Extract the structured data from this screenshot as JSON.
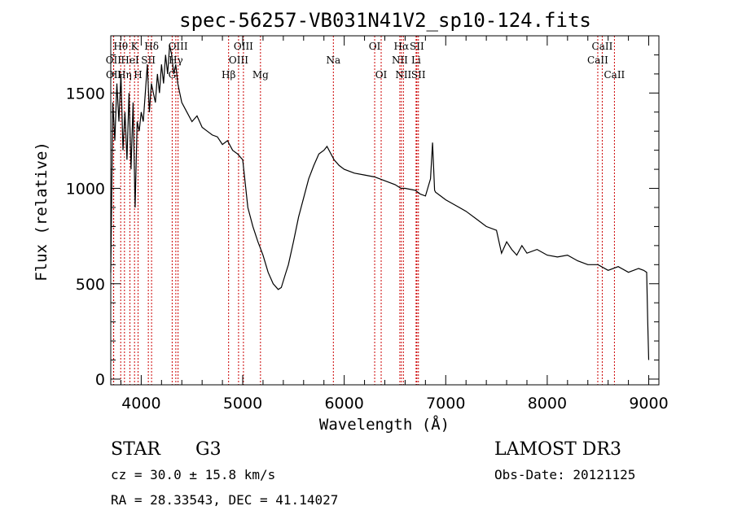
{
  "chart_data": {
    "type": "line",
    "title": "spec-56257-VB031N41V2_sp10-124.fits",
    "xlabel": "Wavelength (Å)",
    "ylabel": "Flux (relative)",
    "xlim": [
      3700,
      9100
    ],
    "ylim": [
      -30,
      1800
    ],
    "xticks": [
      4000,
      5000,
      6000,
      7000,
      8000,
      9000
    ],
    "yticks": [
      0,
      500,
      1000,
      1500
    ],
    "grid": false,
    "spectrum": {
      "x": [
        3700,
        3720,
        3740,
        3760,
        3780,
        3800,
        3820,
        3840,
        3860,
        3880,
        3900,
        3920,
        3940,
        3960,
        3980,
        4000,
        4020,
        4040,
        4060,
        4080,
        4100,
        4120,
        4140,
        4160,
        4180,
        4200,
        4220,
        4240,
        4260,
        4280,
        4300,
        4320,
        4340,
        4360,
        4380,
        4400,
        4450,
        4500,
        4550,
        4600,
        4650,
        4700,
        4750,
        4800,
        4850,
        4900,
        4950,
        5000,
        5050,
        5100,
        5150,
        5200,
        5250,
        5300,
        5350,
        5380,
        5420,
        5450,
        5500,
        5550,
        5600,
        5650,
        5700,
        5750,
        5800,
        5830,
        5860,
        5880,
        5900,
        5950,
        6000,
        6100,
        6200,
        6300,
        6400,
        6500,
        6560,
        6600,
        6700,
        6750,
        6800,
        6850,
        6870,
        6880,
        6890,
        6900,
        6950,
        7000,
        7100,
        7200,
        7300,
        7400,
        7500,
        7550,
        7600,
        7650,
        7700,
        7750,
        7800,
        7900,
        8000,
        8100,
        8200,
        8300,
        8400,
        8500,
        8600,
        8700,
        8800,
        8900,
        8950,
        8980,
        8990,
        9000
      ],
      "y": [
        560,
        1450,
        1250,
        1550,
        1350,
        1600,
        1200,
        1400,
        1150,
        1500,
        1100,
        1450,
        900,
        1350,
        1300,
        1400,
        1350,
        1500,
        1650,
        1400,
        1550,
        1500,
        1450,
        1600,
        1500,
        1650,
        1550,
        1700,
        1600,
        1750,
        1700,
        1600,
        1650,
        1550,
        1500,
        1450,
        1400,
        1350,
        1380,
        1320,
        1300,
        1280,
        1270,
        1230,
        1250,
        1200,
        1180,
        1150,
        900,
        800,
        720,
        650,
        560,
        500,
        470,
        480,
        550,
        600,
        720,
        850,
        950,
        1050,
        1120,
        1180,
        1200,
        1220,
        1190,
        1170,
        1150,
        1120,
        1100,
        1080,
        1070,
        1060,
        1040,
        1020,
        1000,
        1000,
        990,
        970,
        960,
        1050,
        1240,
        1120,
        990,
        980,
        960,
        940,
        910,
        880,
        840,
        800,
        780,
        660,
        720,
        680,
        650,
        700,
        660,
        680,
        650,
        640,
        650,
        620,
        600,
        600,
        570,
        590,
        560,
        580,
        570,
        560,
        300,
        100
      ],
      "stroke": "#000000"
    },
    "line_markers": [
      {
        "label": "Hθ",
        "x": 3798,
        "row": 0
      },
      {
        "label": "OII",
        "x": 3727,
        "row": 1
      },
      {
        "label": "OII",
        "x": 3729,
        "row": 2
      },
      {
        "label": "Hη",
        "x": 3835,
        "row": 2
      },
      {
        "label": "HeI",
        "x": 3889,
        "row": 1
      },
      {
        "label": "K",
        "x": 3934,
        "row": 0
      },
      {
        "label": "H",
        "x": 3969,
        "row": 2
      },
      {
        "label": "SII",
        "x": 4070,
        "row": 1
      },
      {
        "label": "Hδ",
        "x": 4102,
        "row": 0
      },
      {
        "label": "Hγ",
        "x": 4341,
        "row": 1
      },
      {
        "label": "G",
        "x": 4305,
        "row": 2
      },
      {
        "label": "OIII",
        "x": 4363,
        "row": 0
      },
      {
        "label": "Hβ",
        "x": 4861,
        "row": 2
      },
      {
        "label": "OIII",
        "x": 5007,
        "row": 0
      },
      {
        "label": "OIII",
        "x": 4959,
        "row": 1
      },
      {
        "label": "Mg",
        "x": 5175,
        "row": 2
      },
      {
        "label": "Na",
        "x": 5893,
        "row": 1
      },
      {
        "label": "OI",
        "x": 6300,
        "row": 0
      },
      {
        "label": "OI",
        "x": 6364,
        "row": 2
      },
      {
        "label": "Hα",
        "x": 6563,
        "row": 0
      },
      {
        "label": "NII",
        "x": 6548,
        "row": 1
      },
      {
        "label": "NII",
        "x": 6583,
        "row": 2
      },
      {
        "label": "SII",
        "x": 6716,
        "row": 0
      },
      {
        "label": "Li",
        "x": 6708,
        "row": 1
      },
      {
        "label": "SII",
        "x": 6731,
        "row": 2
      },
      {
        "label": "CaII",
        "x": 8542,
        "row": 0
      },
      {
        "label": "CaII",
        "x": 8498,
        "row": 1
      },
      {
        "label": "CaII",
        "x": 8662,
        "row": 2
      }
    ],
    "marker_color": "#cc0000"
  },
  "info": {
    "class_label": "STAR",
    "subclass": "G3",
    "survey": "LAMOST DR3",
    "cz": "cz = 30.0 ± 15.8 km/s",
    "obs_date": "Obs-Date: 20121125",
    "coords": "RA =  28.33543, DEC =  41.14027"
  }
}
